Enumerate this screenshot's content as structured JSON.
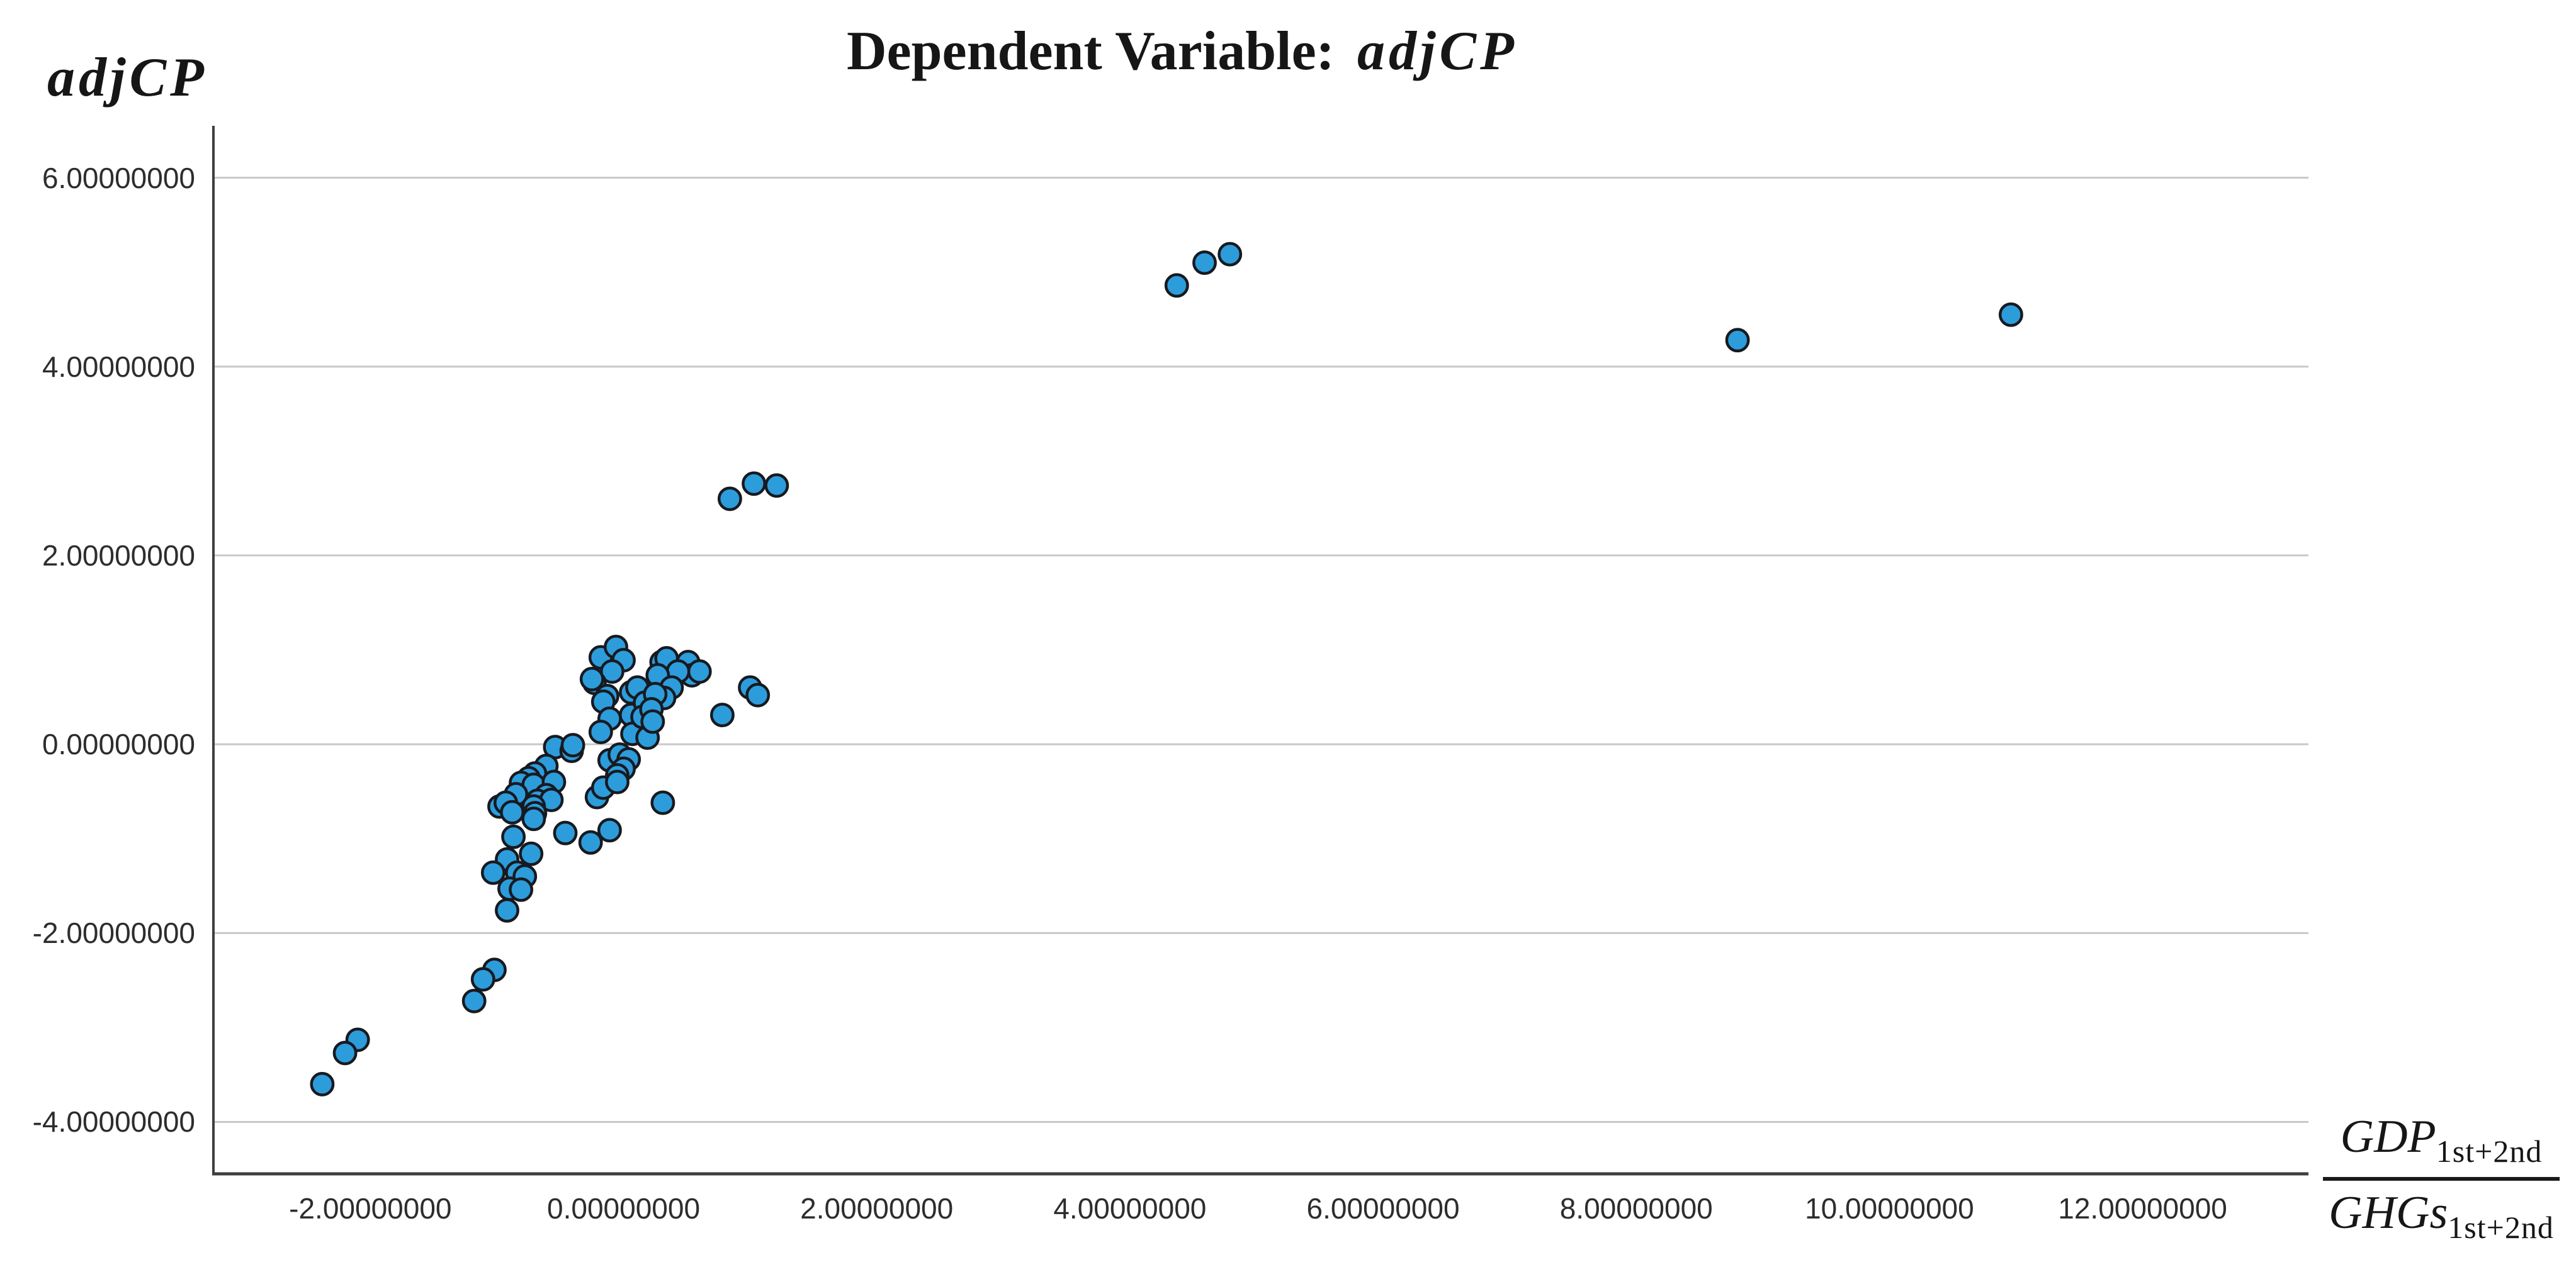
{
  "title": {
    "prefix": "Dependent Variable: ",
    "emphasis": "adjCP"
  },
  "y_axis_label": "adjCP",
  "x_axis_label": {
    "numerator_base": "GDP",
    "numerator_sub": "1st+2nd",
    "denominator_base": "GHGs",
    "denominator_sub": "1st+2nd"
  },
  "colors": {
    "marker_fill": "#2D9CDB",
    "marker_stroke": "#171A20",
    "gridline": "#C8C8C8",
    "axis_line": "#3E3E3E",
    "tick_text": "#2D2D2D",
    "title_text": "#161616"
  },
  "chart_data": {
    "type": "scatter",
    "title": "Dependent Variable: adjCP",
    "xlabel": "GDP(1st+2nd) / GHGs(1st+2nd)",
    "ylabel": "adjCP",
    "legend": "none",
    "grid": "horizontal-only",
    "xlim": [
      -3.24,
      13.31
    ],
    "ylim": [
      -4.55,
      6.55
    ],
    "x_tick_values": [
      -2,
      0,
      2,
      4,
      6,
      8,
      10,
      12
    ],
    "x_tick_labels": [
      "-2.00000000",
      "0.00000000",
      "2.00000000",
      "4.00000000",
      "6.00000000",
      "8.00000000",
      "10.00000000",
      "12.00000000"
    ],
    "y_tick_values": [
      6,
      4,
      2,
      0,
      -2,
      -4
    ],
    "y_tick_labels": [
      "6.00000000",
      "4.00000000",
      "2.00000000",
      "0.00000000",
      "-2.00000000",
      "-4.00000000"
    ],
    "marker": {
      "radius_px": 17.2,
      "stroke_width_px": 4.5
    },
    "n_points": 86,
    "points": [
      [
        4.37,
        4.86
      ],
      [
        4.59,
        5.1
      ],
      [
        4.79,
        5.19
      ],
      [
        8.8,
        4.28
      ],
      [
        10.96,
        4.55
      ],
      [
        0.84,
        2.6
      ],
      [
        1.03,
        2.76
      ],
      [
        1.21,
        2.74
      ],
      [
        0.78,
        0.31
      ],
      [
        1.0,
        0.6
      ],
      [
        1.06,
        0.52
      ],
      [
        0.31,
        -0.62
      ],
      [
        -1.02,
        -2.39
      ],
      [
        -1.11,
        -2.49
      ],
      [
        -1.18,
        -2.72
      ],
      [
        -2.1,
        -3.13
      ],
      [
        -2.2,
        -3.27
      ],
      [
        -2.38,
        -3.6
      ],
      [
        -0.18,
        0.92
      ],
      [
        -0.06,
        1.03
      ],
      [
        0.0,
        0.89
      ],
      [
        -0.09,
        0.77
      ],
      [
        -0.23,
        0.65
      ],
      [
        -0.25,
        0.69
      ],
      [
        -0.13,
        0.51
      ],
      [
        -0.16,
        0.45
      ],
      [
        0.06,
        0.55
      ],
      [
        0.11,
        0.6
      ],
      [
        -0.11,
        0.27
      ],
      [
        -0.18,
        0.13
      ],
      [
        0.06,
        0.31
      ],
      [
        0.07,
        0.11
      ],
      [
        0.17,
        0.44
      ],
      [
        -0.54,
        -0.03
      ],
      [
        -0.41,
        -0.07
      ],
      [
        -0.4,
        -0.01
      ],
      [
        -0.61,
        -0.23
      ],
      [
        -0.7,
        -0.31
      ],
      [
        -0.75,
        -0.36
      ],
      [
        -0.11,
        -0.17
      ],
      [
        -0.03,
        -0.11
      ],
      [
        0.04,
        -0.16
      ],
      [
        0.0,
        -0.26
      ],
      [
        -0.05,
        -0.33
      ],
      [
        0.15,
        0.29
      ],
      [
        0.19,
        0.07
      ],
      [
        0.3,
        0.87
      ],
      [
        0.34,
        0.91
      ],
      [
        0.51,
        0.87
      ],
      [
        0.54,
        0.73
      ],
      [
        0.6,
        0.77
      ],
      [
        0.43,
        0.77
      ],
      [
        0.27,
        0.73
      ],
      [
        0.38,
        0.6
      ],
      [
        0.32,
        0.49
      ],
      [
        0.25,
        0.53
      ],
      [
        0.22,
        0.37
      ],
      [
        0.23,
        0.24
      ],
      [
        -0.81,
        -0.41
      ],
      [
        -0.71,
        -0.43
      ],
      [
        -0.55,
        -0.4
      ],
      [
        -0.61,
        -0.54
      ],
      [
        -0.85,
        -0.53
      ],
      [
        -0.68,
        -0.6
      ],
      [
        -0.57,
        -0.59
      ],
      [
        -0.98,
        -0.66
      ],
      [
        -0.93,
        -0.62
      ],
      [
        -0.88,
        -0.72
      ],
      [
        -0.71,
        -0.66
      ],
      [
        -0.7,
        -0.73
      ],
      [
        -0.71,
        -0.79
      ],
      [
        -0.21,
        -0.56
      ],
      [
        -0.16,
        -0.46
      ],
      [
        -0.05,
        -0.4
      ],
      [
        -0.87,
        -0.98
      ],
      [
        -0.46,
        -0.94
      ],
      [
        -0.26,
        -1.04
      ],
      [
        -0.11,
        -0.91
      ],
      [
        -0.92,
        -1.22
      ],
      [
        -0.73,
        -1.16
      ],
      [
        -1.03,
        -1.36
      ],
      [
        -0.84,
        -1.36
      ],
      [
        -0.78,
        -1.4
      ],
      [
        -0.9,
        -1.53
      ],
      [
        -0.81,
        -1.54
      ],
      [
        -0.92,
        -1.76
      ]
    ]
  }
}
